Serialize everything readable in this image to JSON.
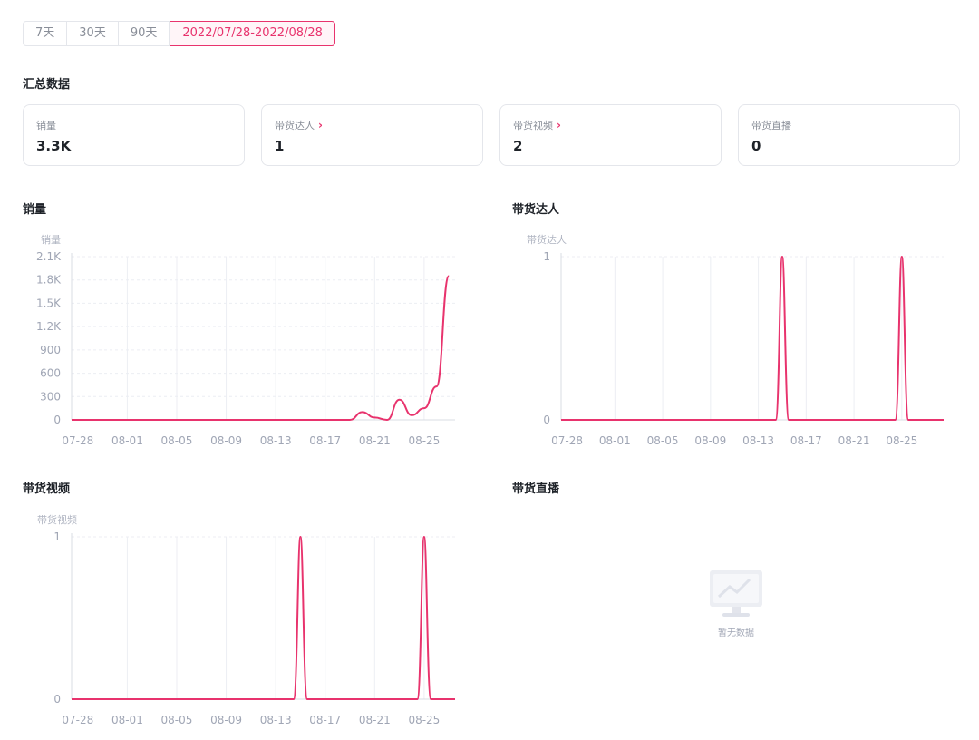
{
  "range_tabs": [
    {
      "label": "7天"
    },
    {
      "label": "30天"
    },
    {
      "label": "90天"
    },
    {
      "label": "2022/07/28-2022/08/28",
      "active": true
    }
  ],
  "summary": {
    "title": "汇总数据",
    "cards": [
      {
        "label": "销量",
        "value": "3.3K",
        "has_arrow": false
      },
      {
        "label": "带货达人",
        "value": "1",
        "has_arrow": true
      },
      {
        "label": "带货视频",
        "value": "2",
        "has_arrow": true
      },
      {
        "label": "带货直播",
        "value": "0",
        "has_arrow": false
      }
    ]
  },
  "accent_color": "#e8336d",
  "x_ticks": [
    "07-28",
    "08-01",
    "08-05",
    "08-09",
    "08-13",
    "08-17",
    "08-21",
    "08-25"
  ],
  "charts": {
    "sales": {
      "title": "销量",
      "unit": "销量",
      "y_ticks": [
        "2.1K",
        "1.8K",
        "1.5K",
        "1.2K",
        "900",
        "600",
        "300",
        "0"
      ]
    },
    "creators": {
      "title": "带货达人",
      "unit": "带货达人",
      "y_ticks": [
        "1",
        "0"
      ]
    },
    "videos": {
      "title": "带货视频",
      "unit": "带货视频",
      "y_ticks": [
        "1",
        "0"
      ]
    },
    "live": {
      "title": "带货直播",
      "empty_text": "暂无数据",
      "empty_icon": "monitor-chart-icon"
    }
  },
  "chart_data": [
    {
      "type": "line",
      "title": "销量",
      "ylabel": "销量",
      "x": [
        "07-28",
        "07-29",
        "07-30",
        "07-31",
        "08-01",
        "08-02",
        "08-03",
        "08-04",
        "08-05",
        "08-06",
        "08-07",
        "08-08",
        "08-09",
        "08-10",
        "08-11",
        "08-12",
        "08-13",
        "08-14",
        "08-15",
        "08-16",
        "08-17",
        "08-18",
        "08-19",
        "08-20",
        "08-21",
        "08-22",
        "08-23",
        "08-24",
        "08-25",
        "08-26",
        "08-27"
      ],
      "values": [
        0,
        0,
        0,
        0,
        0,
        0,
        0,
        0,
        0,
        0,
        0,
        0,
        0,
        0,
        0,
        0,
        0,
        0,
        0,
        0,
        0,
        0,
        0,
        100,
        30,
        0,
        260,
        60,
        150,
        430,
        1850
      ],
      "ylim": [
        0,
        2100
      ]
    },
    {
      "type": "line",
      "title": "带货达人",
      "ylabel": "带货达人",
      "x": [
        "07-28",
        "07-29",
        "07-30",
        "07-31",
        "08-01",
        "08-02",
        "08-03",
        "08-04",
        "08-05",
        "08-06",
        "08-07",
        "08-08",
        "08-09",
        "08-10",
        "08-11",
        "08-12",
        "08-13",
        "08-14",
        "08-15",
        "08-16",
        "08-17",
        "08-18",
        "08-19",
        "08-20",
        "08-21",
        "08-22",
        "08-23",
        "08-24",
        "08-25",
        "08-26",
        "08-27",
        "08-28"
      ],
      "values": [
        0,
        0,
        0,
        0,
        0,
        0,
        0,
        0,
        0,
        0,
        0,
        0,
        0,
        0,
        0,
        0,
        0,
        0,
        1,
        0,
        0,
        0,
        0,
        0,
        0,
        0,
        0,
        0,
        1,
        0,
        0,
        0
      ],
      "ylim": [
        0,
        1
      ]
    },
    {
      "type": "line",
      "title": "带货视频",
      "ylabel": "带货视频",
      "x": [
        "07-28",
        "07-29",
        "07-30",
        "07-31",
        "08-01",
        "08-02",
        "08-03",
        "08-04",
        "08-05",
        "08-06",
        "08-07",
        "08-08",
        "08-09",
        "08-10",
        "08-11",
        "08-12",
        "08-13",
        "08-14",
        "08-15",
        "08-16",
        "08-17",
        "08-18",
        "08-19",
        "08-20",
        "08-21",
        "08-22",
        "08-23",
        "08-24",
        "08-25",
        "08-26",
        "08-27"
      ],
      "values": [
        0,
        0,
        0,
        0,
        0,
        0,
        0,
        0,
        0,
        0,
        0,
        0,
        0,
        0,
        0,
        0,
        0,
        0,
        1,
        0,
        0,
        0,
        0,
        0,
        0,
        0,
        0,
        0,
        1,
        0,
        0
      ],
      "ylim": [
        0,
        1
      ]
    }
  ]
}
